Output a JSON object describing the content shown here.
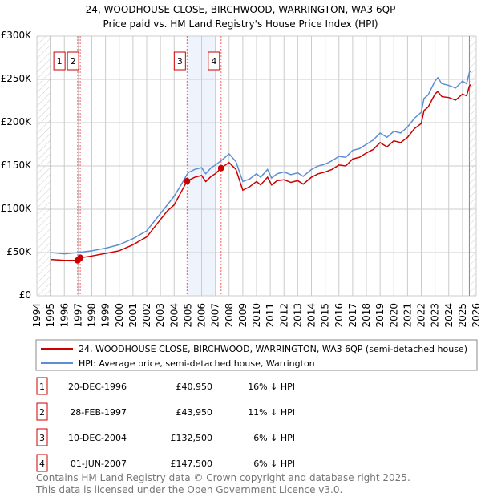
{
  "chart_data": {
    "type": "line",
    "title": "24, WOODHOUSE CLOSE, BIRCHWOOD, WARRINGTON, WA3 6QP",
    "subtitle": "Price paid vs. HM Land Registry's House Price Index (HPI)",
    "xlim": [
      1994,
      2026
    ],
    "ylim": [
      0,
      300000
    ],
    "x_ticks": [
      1994,
      1995,
      1996,
      1997,
      1998,
      1999,
      2000,
      2001,
      2002,
      2003,
      2004,
      2005,
      2006,
      2007,
      2008,
      2009,
      2010,
      2011,
      2012,
      2013,
      2014,
      2015,
      2016,
      2017,
      2018,
      2019,
      2020,
      2021,
      2022,
      2023,
      2024,
      2025,
      2026
    ],
    "y_ticks": [
      {
        "v": 0,
        "label": "£0"
      },
      {
        "v": 50000,
        "label": "£50K"
      },
      {
        "v": 100000,
        "label": "£100K"
      },
      {
        "v": 150000,
        "label": "£150K"
      },
      {
        "v": 200000,
        "label": "£200K"
      },
      {
        "v": 250000,
        "label": "£250K"
      },
      {
        "v": 300000,
        "label": "£300K"
      }
    ],
    "grid": true,
    "data_range": [
      1995,
      2025.5
    ],
    "shaded_range": [
      2005,
      2007
    ],
    "series": [
      {
        "name": "24, WOODHOUSE CLOSE, BIRCHWOOD, WARRINGTON, WA3 6QP (semi-detached house)",
        "color": "#cc0000",
        "points": [
          [
            1995,
            42000
          ],
          [
            1996,
            41000
          ],
          [
            1996.97,
            40950
          ],
          [
            1997.16,
            43950
          ],
          [
            1998,
            46000
          ],
          [
            1999,
            49000
          ],
          [
            2000,
            52000
          ],
          [
            2001,
            59000
          ],
          [
            2002,
            68000
          ],
          [
            2003,
            88000
          ],
          [
            2003.5,
            98000
          ],
          [
            2004,
            105000
          ],
          [
            2004.94,
            132500
          ],
          [
            2005.5,
            137000
          ],
          [
            2006,
            139000
          ],
          [
            2006.3,
            132000
          ],
          [
            2006.7,
            138000
          ],
          [
            2007,
            141000
          ],
          [
            2007.42,
            147500
          ],
          [
            2008,
            154000
          ],
          [
            2008.5,
            146000
          ],
          [
            2009,
            122000
          ],
          [
            2009.5,
            126000
          ],
          [
            2010,
            132000
          ],
          [
            2010.3,
            128000
          ],
          [
            2010.8,
            137000
          ],
          [
            2011.1,
            128000
          ],
          [
            2011.5,
            133000
          ],
          [
            2012,
            134000
          ],
          [
            2012.5,
            131000
          ],
          [
            2013,
            133000
          ],
          [
            2013.4,
            129000
          ],
          [
            2014,
            137000
          ],
          [
            2014.5,
            141000
          ],
          [
            2015,
            143000
          ],
          [
            2015.5,
            146000
          ],
          [
            2016,
            151000
          ],
          [
            2016.5,
            150000
          ],
          [
            2017,
            158000
          ],
          [
            2017.5,
            160000
          ],
          [
            2018,
            165000
          ],
          [
            2018.5,
            169000
          ],
          [
            2019,
            177000
          ],
          [
            2019.5,
            172000
          ],
          [
            2020,
            179000
          ],
          [
            2020.5,
            177000
          ],
          [
            2021,
            183000
          ],
          [
            2021.5,
            193000
          ],
          [
            2022,
            199000
          ],
          [
            2022.2,
            214000
          ],
          [
            2022.5,
            218000
          ],
          [
            2023,
            233000
          ],
          [
            2023.2,
            236000
          ],
          [
            2023.5,
            230000
          ],
          [
            2024,
            229000
          ],
          [
            2024.5,
            226000
          ],
          [
            2025,
            233000
          ],
          [
            2025.3,
            231000
          ],
          [
            2025.5,
            242000
          ],
          [
            2025.6,
            244000
          ]
        ]
      },
      {
        "name": "HPI: Average price, semi-detached house, Warrington",
        "color": "#5b8fd4",
        "points": [
          [
            1995,
            50000
          ],
          [
            1996,
            48500
          ],
          [
            1997,
            50000
          ],
          [
            1998,
            52000
          ],
          [
            1999,
            55000
          ],
          [
            2000,
            59000
          ],
          [
            2001,
            66000
          ],
          [
            2002,
            75000
          ],
          [
            2003,
            95000
          ],
          [
            2003.5,
            105000
          ],
          [
            2004,
            115000
          ],
          [
            2004.5,
            128000
          ],
          [
            2005,
            142000
          ],
          [
            2005.5,
            146000
          ],
          [
            2006,
            148000
          ],
          [
            2006.3,
            141000
          ],
          [
            2006.7,
            148000
          ],
          [
            2007,
            151000
          ],
          [
            2007.5,
            157000
          ],
          [
            2008,
            164000
          ],
          [
            2008.5,
            155000
          ],
          [
            2009,
            132000
          ],
          [
            2009.5,
            135000
          ],
          [
            2010,
            141000
          ],
          [
            2010.3,
            137000
          ],
          [
            2010.8,
            146000
          ],
          [
            2011.1,
            136000
          ],
          [
            2011.5,
            141000
          ],
          [
            2012,
            143000
          ],
          [
            2012.5,
            140000
          ],
          [
            2013,
            142000
          ],
          [
            2013.4,
            138000
          ],
          [
            2014,
            146000
          ],
          [
            2014.5,
            150000
          ],
          [
            2015,
            152000
          ],
          [
            2015.5,
            156000
          ],
          [
            2016,
            161000
          ],
          [
            2016.5,
            160000
          ],
          [
            2017,
            168000
          ],
          [
            2017.5,
            170000
          ],
          [
            2018,
            175000
          ],
          [
            2018.5,
            180000
          ],
          [
            2019,
            188000
          ],
          [
            2019.5,
            183000
          ],
          [
            2020,
            190000
          ],
          [
            2020.5,
            188000
          ],
          [
            2021,
            195000
          ],
          [
            2021.5,
            205000
          ],
          [
            2022,
            212000
          ],
          [
            2022.2,
            228000
          ],
          [
            2022.5,
            232000
          ],
          [
            2023,
            248000
          ],
          [
            2023.2,
            252000
          ],
          [
            2023.5,
            245000
          ],
          [
            2024,
            243000
          ],
          [
            2024.5,
            240000
          ],
          [
            2025,
            248000
          ],
          [
            2025.3,
            245000
          ],
          [
            2025.5,
            258000
          ],
          [
            2025.6,
            260000
          ]
        ]
      }
    ],
    "sales": [
      {
        "id": "1",
        "x": 1996.97,
        "date": "20-DEC-1996",
        "price": 40950,
        "price_label": "£40,950",
        "hpi": "16% ↓ HPI"
      },
      {
        "id": "2",
        "x": 1997.16,
        "date": "28-FEB-1997",
        "price": 43950,
        "price_label": "£43,950",
        "hpi": "11% ↓ HPI"
      },
      {
        "id": "3",
        "x": 2004.94,
        "date": "10-DEC-2004",
        "price": 132500,
        "price_label": "£132,500",
        "hpi": "6% ↓ HPI"
      },
      {
        "id": "4",
        "x": 2007.42,
        "date": "01-JUN-2007",
        "price": 147500,
        "price_label": "£147,500",
        "hpi": "6% ↓ HPI"
      }
    ]
  },
  "footer": {
    "line1": "Contains HM Land Registry data © Crown copyright and database right 2025.",
    "line2": "This data is licensed under the Open Government Licence v3.0."
  }
}
